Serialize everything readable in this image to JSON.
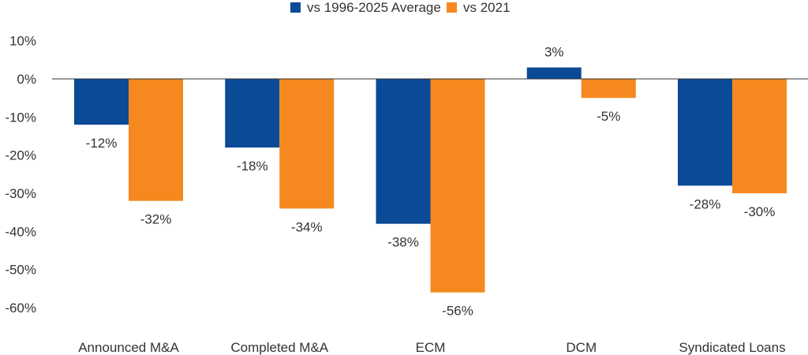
{
  "chart_data": {
    "type": "bar",
    "categories": [
      "Announced M&A",
      "Completed M&A",
      "ECM",
      "DCM",
      "Syndicated Loans"
    ],
    "series": [
      {
        "name": "vs 1996-2025 Average",
        "color": "#0a4a96",
        "values": [
          -12,
          -18,
          -38,
          3,
          -28
        ]
      },
      {
        "name": "vs 2021",
        "color": "#f5891f",
        "values": [
          -32,
          -34,
          -56,
          -5,
          -30
        ]
      }
    ],
    "data_labels": [
      [
        "-12%",
        "-18%",
        "-38%",
        "3%",
        "-28%"
      ],
      [
        "-32%",
        "-34%",
        "-56%",
        "-5%",
        "-30%"
      ]
    ],
    "y_ticks": [
      "10%",
      "0%",
      "-10%",
      "-20%",
      "-30%",
      "-40%",
      "-50%",
      "-60%"
    ],
    "ylim": [
      -60,
      10
    ],
    "grid": false,
    "legend_position": "top-center",
    "title": "",
    "xlabel": "",
    "ylabel": ""
  }
}
